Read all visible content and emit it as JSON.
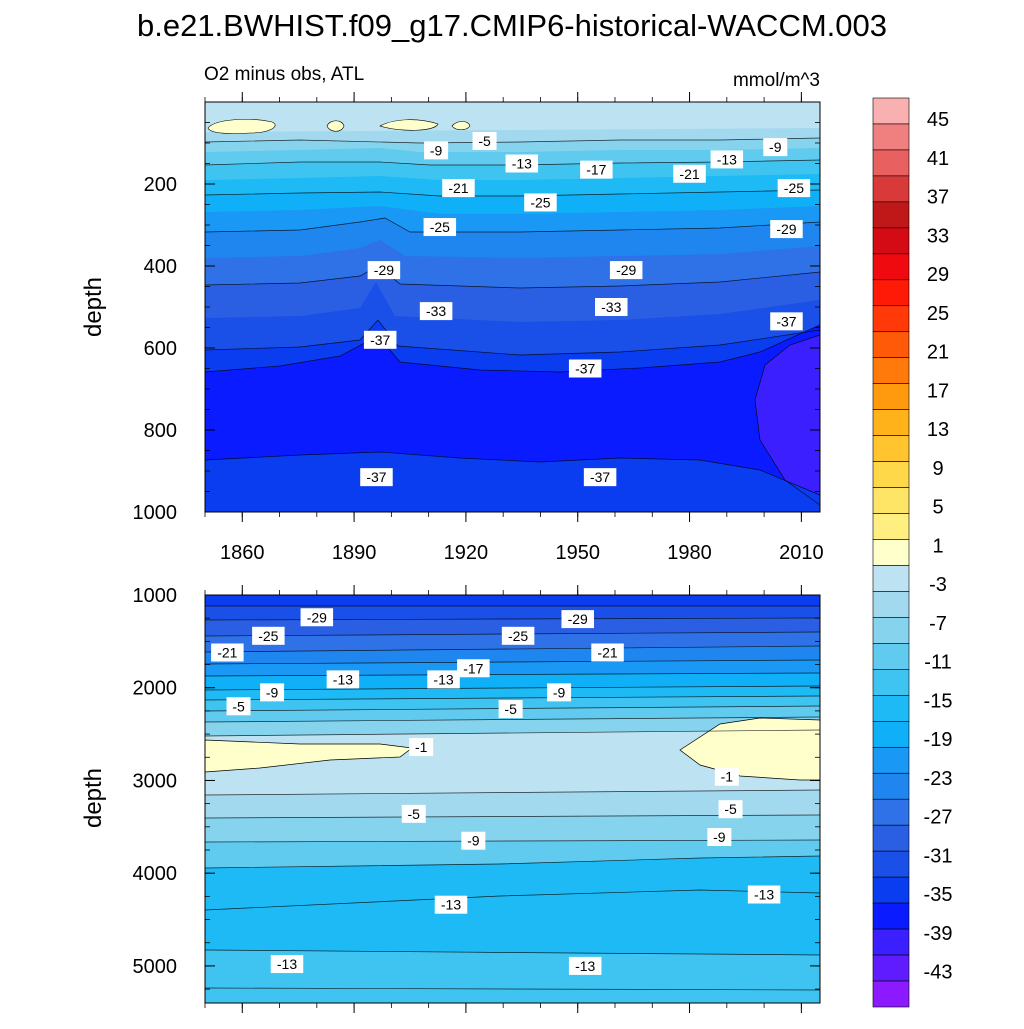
{
  "title": "b.e21.BWHIST.f09_g17.CMIP6-historical-WACCM.003",
  "colors": {
    "levels_low": [
      "#8b1aff",
      "#5e1cff",
      "#3b1fff",
      "#0a1cff",
      "#0a3cf0",
      "#1a4fe8",
      "#2a5fe4",
      "#2f72e8",
      "#1f86f0",
      "#1a98f5",
      "#0fb0f8",
      "#1dbaf5",
      "#3fc4f2",
      "#60cbef",
      "#86d3ee",
      "#a2d9ef",
      "#bde3f2",
      "#ffffcc"
    ],
    "levels_high": [
      "#ffee80",
      "#ffe566",
      "#ffd84a",
      "#ffc42e",
      "#ffb21a",
      "#ff9a0f",
      "#ff7a0a",
      "#ff5a08",
      "#ff3a08",
      "#ff1a08",
      "#ef0a10",
      "#d40a14",
      "#c01818",
      "#d83a3a",
      "#e86060",
      "#f08080",
      "#f8b0b0"
    ]
  },
  "chart_data": [
    {
      "type": "contour",
      "subtitle_left": "O2 minus obs, ATL",
      "subtitle_right": "mmol/m^3",
      "ylabel": "depth",
      "xlim": [
        1850,
        2015
      ],
      "ylim": [
        1000,
        0
      ],
      "x_ticks": [
        1860,
        1890,
        1920,
        1950,
        1980,
        2010
      ],
      "x_tick_labels": [
        "1860",
        "1890",
        "1920",
        "1950",
        "1980",
        "2010"
      ],
      "y_ticks": [
        200,
        400,
        600,
        800,
        1000
      ],
      "y_tick_labels": [
        "200",
        "400",
        "600",
        "800",
        "1000"
      ],
      "contour_labels": [
        {
          "text": "-5",
          "x": 1925,
          "y": 95
        },
        {
          "text": "-9",
          "x": 1912,
          "y": 118
        },
        {
          "text": "-13",
          "x": 1935,
          "y": 150
        },
        {
          "text": "-17",
          "x": 1955,
          "y": 165
        },
        {
          "text": "-21",
          "x": 1980,
          "y": 175
        },
        {
          "text": "-13",
          "x": 1990,
          "y": 140
        },
        {
          "text": "-9",
          "x": 2003,
          "y": 110
        },
        {
          "text": "-21",
          "x": 1918,
          "y": 210
        },
        {
          "text": "-25",
          "x": 1940,
          "y": 245
        },
        {
          "text": "-25",
          "x": 1913,
          "y": 305
        },
        {
          "text": "-25",
          "x": 2008,
          "y": 210
        },
        {
          "text": "-29",
          "x": 2006,
          "y": 310
        },
        {
          "text": "-29",
          "x": 1898,
          "y": 410
        },
        {
          "text": "-29",
          "x": 1963,
          "y": 410
        },
        {
          "text": "-33",
          "x": 1912,
          "y": 510
        },
        {
          "text": "-33",
          "x": 1959,
          "y": 500
        },
        {
          "text": "-37",
          "x": 2006,
          "y": 535
        },
        {
          "text": "-37",
          "x": 1897,
          "y": 580
        },
        {
          "text": "-37",
          "x": 1952,
          "y": 650
        },
        {
          "text": "-37",
          "x": 1896,
          "y": 915
        },
        {
          "text": "-37",
          "x": 1956,
          "y": 915
        }
      ]
    },
    {
      "type": "contour",
      "ylabel": "depth",
      "xlim": [
        1850,
        2015
      ],
      "ylim": [
        5400,
        1000
      ],
      "y_ticks": [
        1000,
        2000,
        3000,
        4000,
        5000
      ],
      "y_tick_labels": [
        "1000",
        "2000",
        "3000",
        "4000",
        "5000"
      ],
      "contour_labels": [
        {
          "text": "-29",
          "x": 1880,
          "y": 1240
        },
        {
          "text": "-29",
          "x": 1950,
          "y": 1260
        },
        {
          "text": "-25",
          "x": 1867,
          "y": 1440
        },
        {
          "text": "-25",
          "x": 1934,
          "y": 1440
        },
        {
          "text": "-21",
          "x": 1856,
          "y": 1620
        },
        {
          "text": "-21",
          "x": 1958,
          "y": 1620
        },
        {
          "text": "-17",
          "x": 1922,
          "y": 1790
        },
        {
          "text": "-13",
          "x": 1887,
          "y": 1910
        },
        {
          "text": "-13",
          "x": 1914,
          "y": 1910
        },
        {
          "text": "-9",
          "x": 1868,
          "y": 2050
        },
        {
          "text": "-9",
          "x": 1945,
          "y": 2050
        },
        {
          "text": "-5",
          "x": 1859,
          "y": 2200
        },
        {
          "text": "-5",
          "x": 1932,
          "y": 2230
        },
        {
          "text": "-1",
          "x": 1908,
          "y": 2640
        },
        {
          "text": "-1",
          "x": 1990,
          "y": 2960
        },
        {
          "text": "-5",
          "x": 1906,
          "y": 3360
        },
        {
          "text": "-5",
          "x": 1991,
          "y": 3310
        },
        {
          "text": "-9",
          "x": 1922,
          "y": 3650
        },
        {
          "text": "-9",
          "x": 1988,
          "y": 3610
        },
        {
          "text": "-13",
          "x": 1916,
          "y": 4340
        },
        {
          "text": "-13",
          "x": 2000,
          "y": 4230
        },
        {
          "text": "-13",
          "x": 1872,
          "y": 4980
        },
        {
          "text": "-13",
          "x": 1952,
          "y": 5000
        }
      ]
    }
  ],
  "colorbar": {
    "labels": [
      "45",
      "41",
      "37",
      "33",
      "29",
      "25",
      "21",
      "17",
      "13",
      "9",
      "5",
      "1",
      "-3",
      "-7",
      "-11",
      "-15",
      "-19",
      "-23",
      "-27",
      "-31",
      "-35",
      "-39",
      "-43"
    ]
  }
}
